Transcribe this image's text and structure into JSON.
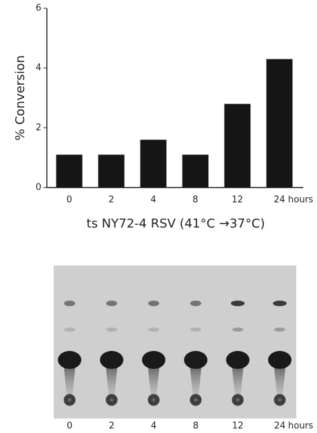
{
  "chart_data": {
    "type": "bar",
    "ylabel": "% Conversion",
    "xlabel": "ts NY72-4 RSV (41°C →37°C)",
    "x_unit": "hours",
    "categories": [
      "0",
      "2",
      "4",
      "8",
      "12",
      "24"
    ],
    "values": [
      1.1,
      1.1,
      1.6,
      1.1,
      2.8,
      4.3
    ],
    "color": "#151515",
    "ylim": [
      0,
      6
    ],
    "yticks": [
      0,
      2,
      4,
      6
    ],
    "grid": false
  },
  "tlc_panel": {
    "lanes": [
      "0",
      "2",
      "4",
      "8",
      "12",
      "24"
    ],
    "unit": "hours"
  }
}
